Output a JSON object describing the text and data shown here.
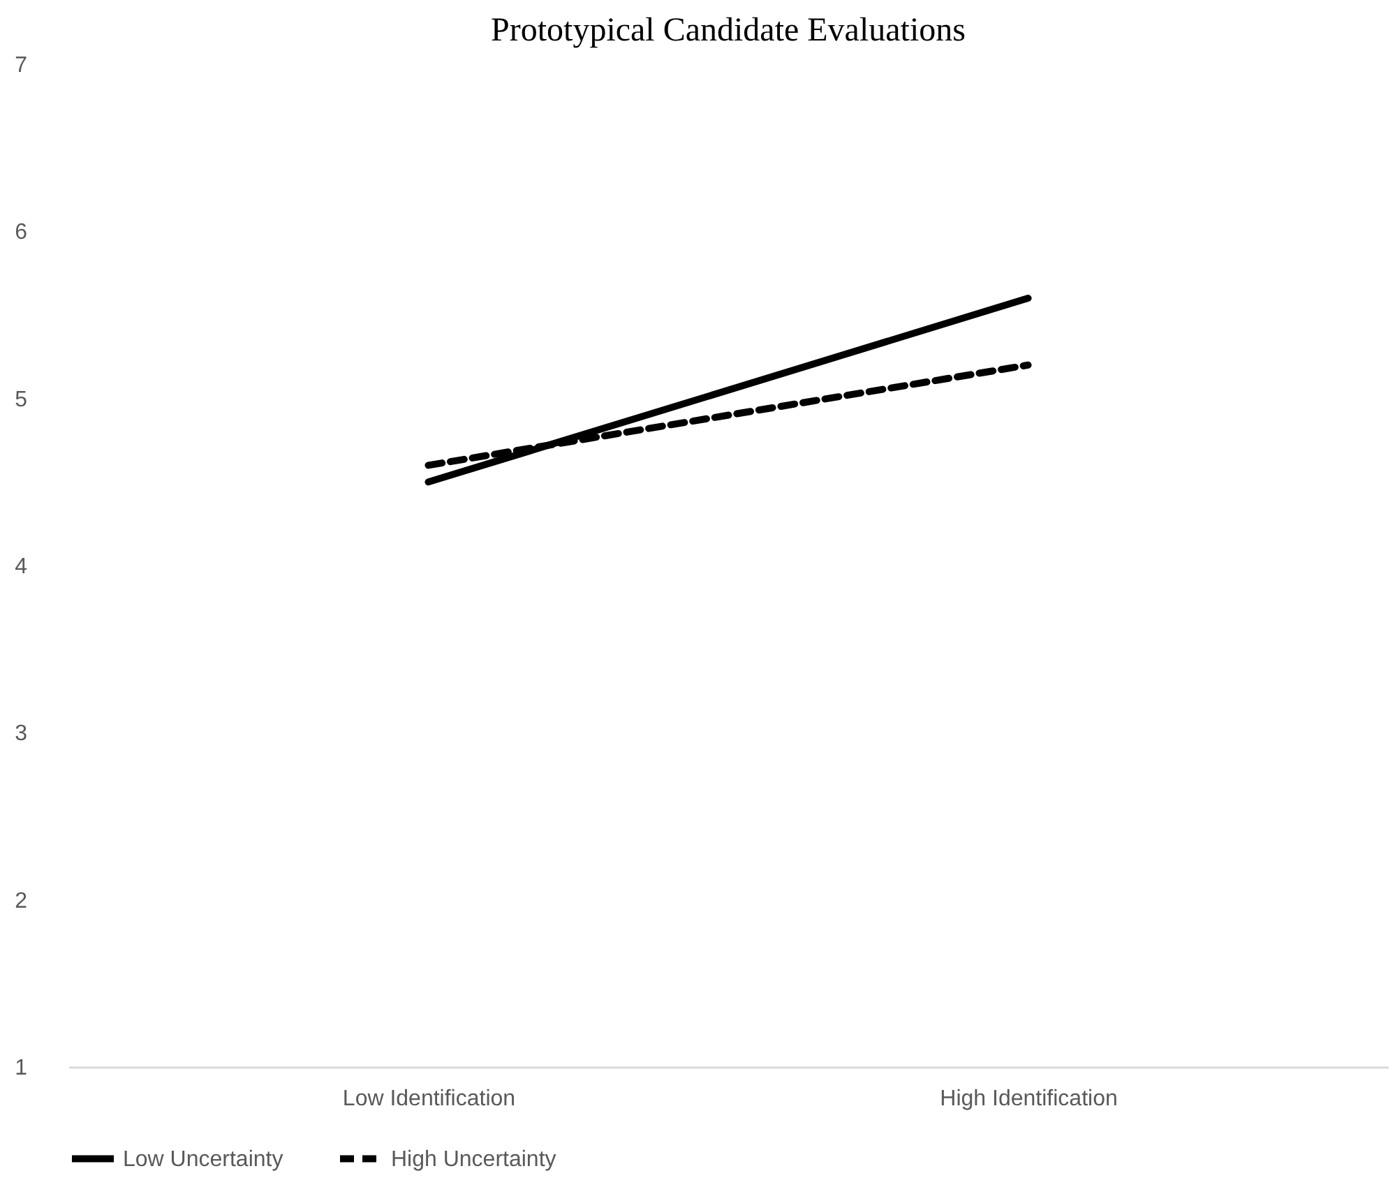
{
  "chart_data": {
    "type": "line",
    "title": "Prototypical Candidate Evaluations",
    "categories": [
      "Low Identification",
      "High Identification"
    ],
    "series": [
      {
        "name": "Low Uncertainty",
        "color": "#000000",
        "line_style": "solid",
        "values": [
          4.5,
          5.6
        ]
      },
      {
        "name": "High Uncertainty",
        "color": "#000000",
        "line_style": "dashed",
        "values": [
          4.6,
          5.2
        ]
      }
    ],
    "ylim": [
      1,
      7
    ],
    "yticks": [
      1,
      2,
      3,
      4,
      5,
      6,
      7
    ],
    "grid": false,
    "legend": "bottom",
    "marker": "none"
  }
}
